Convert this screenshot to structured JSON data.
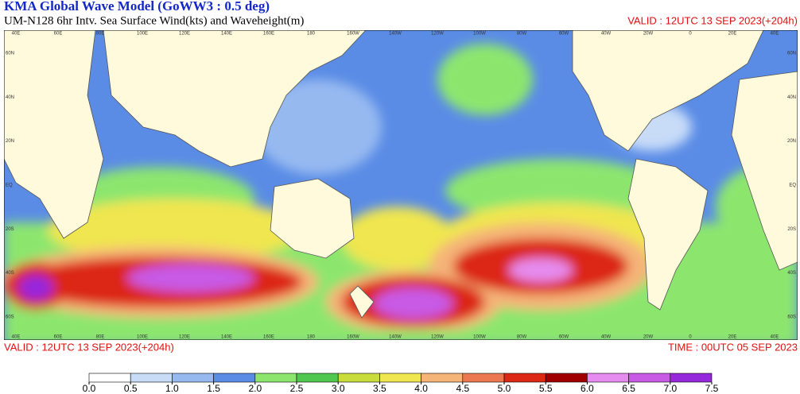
{
  "header": {
    "title": "KMA  Global Wave Model (GoWW3 : 0.5 deg)",
    "subtitle": "UM-N128  6hr Intv. Sea Surface Wind(kts) and Waveheight(m)",
    "valid": "VALID : 12UTC 13 SEP 2023(+204h)"
  },
  "map": {
    "lon_labels": [
      "40E",
      "60E",
      "80E",
      "100E",
      "120E",
      "140E",
      "160E",
      "180",
      "160W",
      "140W",
      "120W",
      "100W",
      "80W",
      "60W",
      "40W",
      "20W",
      "0",
      "20E",
      "40E"
    ],
    "lat_labels": [
      "60N",
      "40N",
      "20N",
      "EQ",
      "20S",
      "40S",
      "60S"
    ]
  },
  "footer": {
    "valid": "VALID : 12UTC 13 SEP 2023(+204h)",
    "time": "TIME : 00UTC 05 SEP 2023"
  },
  "colorbar": {
    "ticks": [
      {
        "value": 0,
        "label": "0.0"
      },
      {
        "value": 0.5,
        "label": "0.5"
      },
      {
        "value": 1,
        "label": "1.0"
      },
      {
        "value": 1.5,
        "label": "1.5"
      },
      {
        "value": 2,
        "label": "2.0"
      },
      {
        "value": 2.5,
        "label": "2.5"
      },
      {
        "value": 3,
        "label": "3.0"
      },
      {
        "value": 3.5,
        "label": "3.5"
      },
      {
        "value": 4,
        "label": "4.0"
      },
      {
        "value": 4.5,
        "label": "4.5"
      },
      {
        "value": 5,
        "label": "5.0"
      },
      {
        "value": 5.5,
        "label": "5.5"
      },
      {
        "value": 6,
        "label": "6.0"
      },
      {
        "value": 6.5,
        "label": "6.5"
      },
      {
        "value": 7,
        "label": "7.0"
      },
      {
        "value": 7.5,
        "label": "7.5"
      }
    ],
    "colors": [
      "#ffffff",
      "#c8dcf8",
      "#96b9f0",
      "#5a8ce6",
      "#8ce66e",
      "#50c850",
      "#c8dc3c",
      "#f0e650",
      "#f5b478",
      "#eb7850",
      "#dc2814",
      "#a00000",
      "#e68cf0",
      "#c85ae6",
      "#9628dc"
    ]
  }
}
